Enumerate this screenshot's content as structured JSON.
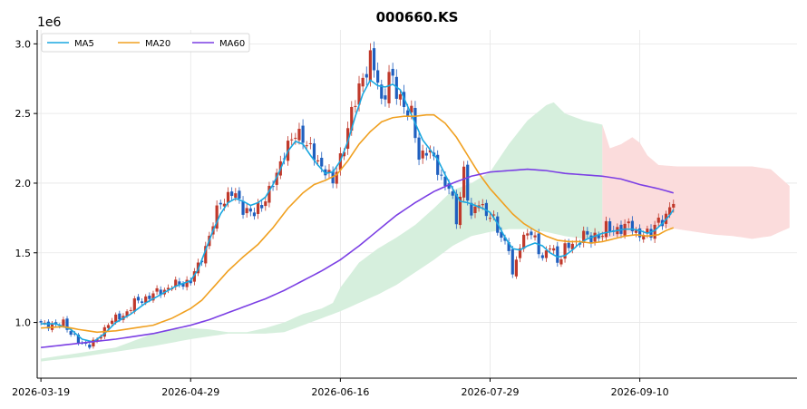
{
  "chart_data": {
    "type": "candlestick",
    "title": "000660.KS",
    "y_offset_label": "1e6",
    "ylim": [
      0.6,
      3.1
    ],
    "yticks": [
      1.0,
      1.5,
      2.0,
      2.5,
      3.0
    ],
    "ytick_labels": [
      "1.0",
      "1.5",
      "2.0",
      "2.5",
      "3.0"
    ],
    "x_range": [
      -1,
      202
    ],
    "xticks": [
      0,
      40,
      80,
      120,
      160
    ],
    "xtick_labels": [
      "2026-03-19",
      "2026-04-29",
      "2026-06-16",
      "2026-07-29",
      "2026-09-10"
    ],
    "grid": true,
    "legend_position": "top-left",
    "colors": {
      "up": "#c0392b",
      "down": "#1f5fbf",
      "ma5": "#1aa7e0",
      "ma20": "#f0a020",
      "ma60": "#7b3fe4",
      "cloud_bull": "#d6efdd",
      "cloud_bear": "#fbdcdc"
    },
    "series": [
      {
        "name": "MA5",
        "key": "ma5"
      },
      {
        "name": "MA20",
        "key": "ma20"
      },
      {
        "name": "MA60",
        "key": "ma60"
      }
    ],
    "close_anchors": [
      [
        0,
        1.0
      ],
      [
        4,
        0.97
      ],
      [
        6,
        1.01
      ],
      [
        8,
        0.92
      ],
      [
        10,
        0.86
      ],
      [
        13,
        0.84
      ],
      [
        15,
        0.87
      ],
      [
        18,
        1.0
      ],
      [
        22,
        1.05
      ],
      [
        25,
        1.14
      ],
      [
        30,
        1.2
      ],
      [
        35,
        1.26
      ],
      [
        40,
        1.3
      ],
      [
        42,
        1.4
      ],
      [
        45,
        1.62
      ],
      [
        48,
        1.87
      ],
      [
        51,
        1.93
      ],
      [
        54,
        1.83
      ],
      [
        57,
        1.77
      ],
      [
        60,
        1.9
      ],
      [
        63,
        2.04
      ],
      [
        65,
        2.25
      ],
      [
        68,
        2.33
      ],
      [
        70,
        2.35
      ],
      [
        72,
        2.24
      ],
      [
        74,
        2.13
      ],
      [
        76,
        2.12
      ],
      [
        78,
        1.99
      ],
      [
        80,
        2.18
      ],
      [
        82,
        2.4
      ],
      [
        84,
        2.58
      ],
      [
        86,
        2.78
      ],
      [
        88,
        2.88
      ],
      [
        90,
        2.73
      ],
      [
        91,
        2.58
      ],
      [
        93,
        2.78
      ],
      [
        95,
        2.64
      ],
      [
        97,
        2.58
      ],
      [
        99,
        2.48
      ],
      [
        101,
        2.18
      ],
      [
        103,
        2.26
      ],
      [
        105,
        2.15
      ],
      [
        107,
        2.04
      ],
      [
        109,
        1.98
      ],
      [
        111,
        1.72
      ],
      [
        113,
        2.11
      ],
      [
        115,
        1.73
      ],
      [
        117,
        1.88
      ],
      [
        119,
        1.79
      ],
      [
        121,
        1.72
      ],
      [
        123,
        1.62
      ],
      [
        125,
        1.54
      ],
      [
        126,
        1.31
      ],
      [
        128,
        1.57
      ],
      [
        130,
        1.66
      ],
      [
        132,
        1.58
      ],
      [
        134,
        1.47
      ],
      [
        136,
        1.55
      ],
      [
        138,
        1.43
      ],
      [
        140,
        1.55
      ],
      [
        143,
        1.55
      ],
      [
        145,
        1.66
      ],
      [
        147,
        1.58
      ],
      [
        149,
        1.62
      ],
      [
        151,
        1.7
      ],
      [
        153,
        1.63
      ],
      [
        155,
        1.69
      ],
      [
        157,
        1.71
      ],
      [
        159,
        1.62
      ],
      [
        161,
        1.66
      ],
      [
        163,
        1.62
      ],
      [
        165,
        1.74
      ],
      [
        167,
        1.76
      ],
      [
        169,
        1.86
      ]
    ],
    "ma_anchors": {
      "ma5": [
        [
          0,
          0.99
        ],
        [
          4,
          0.99
        ],
        [
          8,
          0.95
        ],
        [
          11,
          0.88
        ],
        [
          14,
          0.86
        ],
        [
          17,
          0.92
        ],
        [
          20,
          1.0
        ],
        [
          24,
          1.06
        ],
        [
          28,
          1.14
        ],
        [
          32,
          1.2
        ],
        [
          36,
          1.26
        ],
        [
          40,
          1.3
        ],
        [
          42,
          1.38
        ],
        [
          44,
          1.52
        ],
        [
          46,
          1.66
        ],
        [
          48,
          1.78
        ],
        [
          50,
          1.86
        ],
        [
          52,
          1.89
        ],
        [
          54,
          1.87
        ],
        [
          56,
          1.84
        ],
        [
          58,
          1.86
        ],
        [
          60,
          1.9
        ],
        [
          62,
          1.99
        ],
        [
          64,
          2.1
        ],
        [
          66,
          2.23
        ],
        [
          68,
          2.3
        ],
        [
          70,
          2.28
        ],
        [
          72,
          2.2
        ],
        [
          74,
          2.13
        ],
        [
          76,
          2.07
        ],
        [
          78,
          2.08
        ],
        [
          80,
          2.16
        ],
        [
          82,
          2.3
        ],
        [
          84,
          2.48
        ],
        [
          86,
          2.64
        ],
        [
          88,
          2.74
        ],
        [
          90,
          2.7
        ],
        [
          92,
          2.69
        ],
        [
          94,
          2.71
        ],
        [
          96,
          2.67
        ],
        [
          98,
          2.55
        ],
        [
          100,
          2.43
        ],
        [
          102,
          2.31
        ],
        [
          104,
          2.24
        ],
        [
          106,
          2.17
        ],
        [
          108,
          2.06
        ],
        [
          110,
          1.96
        ],
        [
          112,
          1.87
        ],
        [
          114,
          1.86
        ],
        [
          116,
          1.84
        ],
        [
          118,
          1.82
        ],
        [
          120,
          1.79
        ],
        [
          122,
          1.71
        ],
        [
          124,
          1.61
        ],
        [
          126,
          1.53
        ],
        [
          128,
          1.52
        ],
        [
          130,
          1.55
        ],
        [
          132,
          1.57
        ],
        [
          134,
          1.55
        ],
        [
          136,
          1.5
        ],
        [
          138,
          1.47
        ],
        [
          140,
          1.48
        ],
        [
          142,
          1.52
        ],
        [
          144,
          1.57
        ],
        [
          146,
          1.6
        ],
        [
          148,
          1.62
        ],
        [
          150,
          1.64
        ],
        [
          152,
          1.65
        ],
        [
          154,
          1.66
        ],
        [
          156,
          1.67
        ],
        [
          158,
          1.67
        ],
        [
          160,
          1.66
        ],
        [
          162,
          1.64
        ],
        [
          164,
          1.66
        ],
        [
          166,
          1.71
        ],
        [
          168,
          1.77
        ],
        [
          169,
          1.81
        ]
      ],
      "ma20": [
        [
          0,
          0.96
        ],
        [
          6,
          0.97
        ],
        [
          10,
          0.95
        ],
        [
          15,
          0.93
        ],
        [
          20,
          0.94
        ],
        [
          25,
          0.96
        ],
        [
          30,
          0.98
        ],
        [
          35,
          1.03
        ],
        [
          40,
          1.1
        ],
        [
          43,
          1.16
        ],
        [
          46,
          1.25
        ],
        [
          50,
          1.37
        ],
        [
          54,
          1.47
        ],
        [
          58,
          1.56
        ],
        [
          62,
          1.68
        ],
        [
          66,
          1.82
        ],
        [
          70,
          1.93
        ],
        [
          73,
          1.99
        ],
        [
          76,
          2.02
        ],
        [
          79,
          2.06
        ],
        [
          82,
          2.16
        ],
        [
          85,
          2.28
        ],
        [
          88,
          2.37
        ],
        [
          91,
          2.44
        ],
        [
          94,
          2.47
        ],
        [
          97,
          2.48
        ],
        [
          100,
          2.48
        ],
        [
          103,
          2.49
        ],
        [
          105,
          2.49
        ],
        [
          108,
          2.43
        ],
        [
          111,
          2.33
        ],
        [
          114,
          2.2
        ],
        [
          117,
          2.07
        ],
        [
          120,
          1.96
        ],
        [
          123,
          1.87
        ],
        [
          126,
          1.78
        ],
        [
          129,
          1.71
        ],
        [
          132,
          1.66
        ],
        [
          135,
          1.62
        ],
        [
          138,
          1.59
        ],
        [
          141,
          1.58
        ],
        [
          144,
          1.58
        ],
        [
          147,
          1.57
        ],
        [
          150,
          1.58
        ],
        [
          153,
          1.6
        ],
        [
          156,
          1.62
        ],
        [
          159,
          1.63
        ],
        [
          162,
          1.62
        ],
        [
          165,
          1.63
        ],
        [
          167,
          1.66
        ],
        [
          169,
          1.68
        ]
      ],
      "ma60": [
        [
          0,
          0.82
        ],
        [
          10,
          0.85
        ],
        [
          20,
          0.88
        ],
        [
          30,
          0.92
        ],
        [
          40,
          0.98
        ],
        [
          45,
          1.02
        ],
        [
          50,
          1.07
        ],
        [
          55,
          1.12
        ],
        [
          60,
          1.17
        ],
        [
          65,
          1.23
        ],
        [
          70,
          1.3
        ],
        [
          75,
          1.37
        ],
        [
          80,
          1.45
        ],
        [
          85,
          1.55
        ],
        [
          90,
          1.66
        ],
        [
          95,
          1.77
        ],
        [
          100,
          1.86
        ],
        [
          105,
          1.94
        ],
        [
          110,
          2.0
        ],
        [
          115,
          2.05
        ],
        [
          120,
          2.08
        ],
        [
          125,
          2.09
        ],
        [
          130,
          2.1
        ],
        [
          135,
          2.09
        ],
        [
          140,
          2.07
        ],
        [
          145,
          2.06
        ],
        [
          150,
          2.05
        ],
        [
          155,
          2.03
        ],
        [
          160,
          1.99
        ],
        [
          165,
          1.96
        ],
        [
          169,
          1.93
        ]
      ]
    },
    "cloud_upper": [
      [
        0,
        0.74
      ],
      [
        5,
        0.76
      ],
      [
        10,
        0.78
      ],
      [
        15,
        0.8
      ],
      [
        20,
        0.82
      ],
      [
        25,
        0.87
      ],
      [
        30,
        0.92
      ],
      [
        35,
        0.95
      ],
      [
        40,
        0.96
      ],
      [
        45,
        0.95
      ],
      [
        50,
        0.93
      ],
      [
        55,
        0.93
      ],
      [
        60,
        0.96
      ],
      [
        65,
        1.0
      ],
      [
        70,
        1.06
      ],
      [
        75,
        1.1
      ],
      [
        78,
        1.14
      ],
      [
        80,
        1.25
      ],
      [
        85,
        1.43
      ],
      [
        90,
        1.53
      ],
      [
        95,
        1.61
      ],
      [
        100,
        1.7
      ],
      [
        105,
        1.82
      ],
      [
        110,
        1.95
      ],
      [
        115,
        2.0
      ],
      [
        120,
        2.08
      ],
      [
        125,
        2.28
      ],
      [
        130,
        2.45
      ],
      [
        135,
        2.56
      ],
      [
        137,
        2.58
      ],
      [
        140,
        2.5
      ],
      [
        145,
        2.45
      ],
      [
        150,
        2.42
      ],
      [
        152,
        2.25
      ],
      [
        155,
        2.28
      ],
      [
        158,
        2.33
      ],
      [
        160,
        2.29
      ],
      [
        162,
        2.2
      ],
      [
        165,
        2.13
      ],
      [
        170,
        2.12
      ],
      [
        175,
        2.12
      ],
      [
        180,
        2.12
      ],
      [
        185,
        2.12
      ],
      [
        190,
        2.12
      ],
      [
        195,
        2.1
      ],
      [
        200,
        1.98
      ]
    ],
    "cloud_lower": [
      [
        0,
        0.72
      ],
      [
        10,
        0.75
      ],
      [
        20,
        0.79
      ],
      [
        30,
        0.83
      ],
      [
        40,
        0.88
      ],
      [
        50,
        0.92
      ],
      [
        60,
        0.92
      ],
      [
        65,
        0.93
      ],
      [
        70,
        0.98
      ],
      [
        75,
        1.03
      ],
      [
        80,
        1.08
      ],
      [
        85,
        1.14
      ],
      [
        90,
        1.2
      ],
      [
        95,
        1.27
      ],
      [
        100,
        1.36
      ],
      [
        105,
        1.45
      ],
      [
        110,
        1.55
      ],
      [
        115,
        1.62
      ],
      [
        120,
        1.65
      ],
      [
        125,
        1.67
      ],
      [
        130,
        1.67
      ],
      [
        135,
        1.65
      ],
      [
        140,
        1.62
      ],
      [
        145,
        1.6
      ],
      [
        150,
        1.6
      ],
      [
        155,
        1.62
      ],
      [
        160,
        1.66
      ],
      [
        165,
        1.69
      ],
      [
        170,
        1.67
      ],
      [
        175,
        1.65
      ],
      [
        180,
        1.63
      ],
      [
        185,
        1.62
      ],
      [
        190,
        1.6
      ],
      [
        195,
        1.62
      ],
      [
        200,
        1.68
      ]
    ]
  }
}
